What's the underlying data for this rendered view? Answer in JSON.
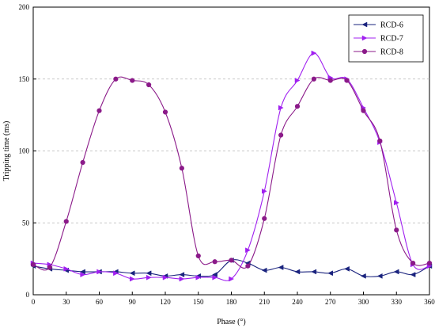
{
  "chart_data": {
    "type": "line",
    "xlabel": "Phase (°)",
    "ylabel": "Tripping time (ms)",
    "xlim": [
      0,
      360
    ],
    "ylim": [
      0,
      200
    ],
    "xticks": [
      0,
      30,
      60,
      90,
      120,
      150,
      180,
      210,
      240,
      270,
      300,
      330,
      360
    ],
    "yticks": [
      0,
      50,
      100,
      150,
      200
    ],
    "grid": "horizontal dashed",
    "legend": "top-right",
    "series": [
      {
        "name": "RCD-6",
        "color": "#1a237e",
        "marker": "triangle-left",
        "x": [
          0,
          15,
          30,
          45,
          60,
          75,
          90,
          105,
          120,
          135,
          150,
          165,
          180,
          195,
          210,
          225,
          240,
          255,
          270,
          285,
          300,
          315,
          330,
          345,
          360
        ],
        "y": [
          20,
          18,
          17,
          16,
          16,
          16,
          15,
          15,
          13,
          14,
          13,
          14,
          24,
          22,
          17,
          19,
          16,
          16,
          15,
          18,
          13,
          13,
          16,
          14,
          20
        ]
      },
      {
        "name": "RCD-7",
        "color": "#a020f0",
        "marker": "triangle-right",
        "x": [
          0,
          15,
          30,
          45,
          60,
          75,
          90,
          105,
          120,
          135,
          150,
          165,
          180,
          195,
          210,
          225,
          240,
          255,
          270,
          285,
          300,
          315,
          330,
          345,
          360
        ],
        "y": [
          22,
          21,
          18,
          14,
          16,
          15,
          11,
          12,
          12,
          11,
          12,
          12,
          11,
          31,
          72,
          130,
          149,
          168,
          151,
          150,
          130,
          106,
          64,
          21,
          20
        ]
      },
      {
        "name": "RCD-8",
        "color": "#8b1a89",
        "marker": "circle",
        "x": [
          0,
          15,
          30,
          45,
          60,
          75,
          90,
          105,
          120,
          135,
          150,
          165,
          180,
          195,
          210,
          225,
          240,
          255,
          270,
          285,
          300,
          315,
          330,
          345,
          360
        ],
        "y": [
          21,
          19,
          51,
          92,
          128,
          150,
          149,
          146,
          127,
          88,
          27,
          23,
          24,
          20,
          53,
          111,
          131,
          150,
          149,
          149,
          128,
          107,
          45,
          22,
          22
        ]
      }
    ]
  }
}
